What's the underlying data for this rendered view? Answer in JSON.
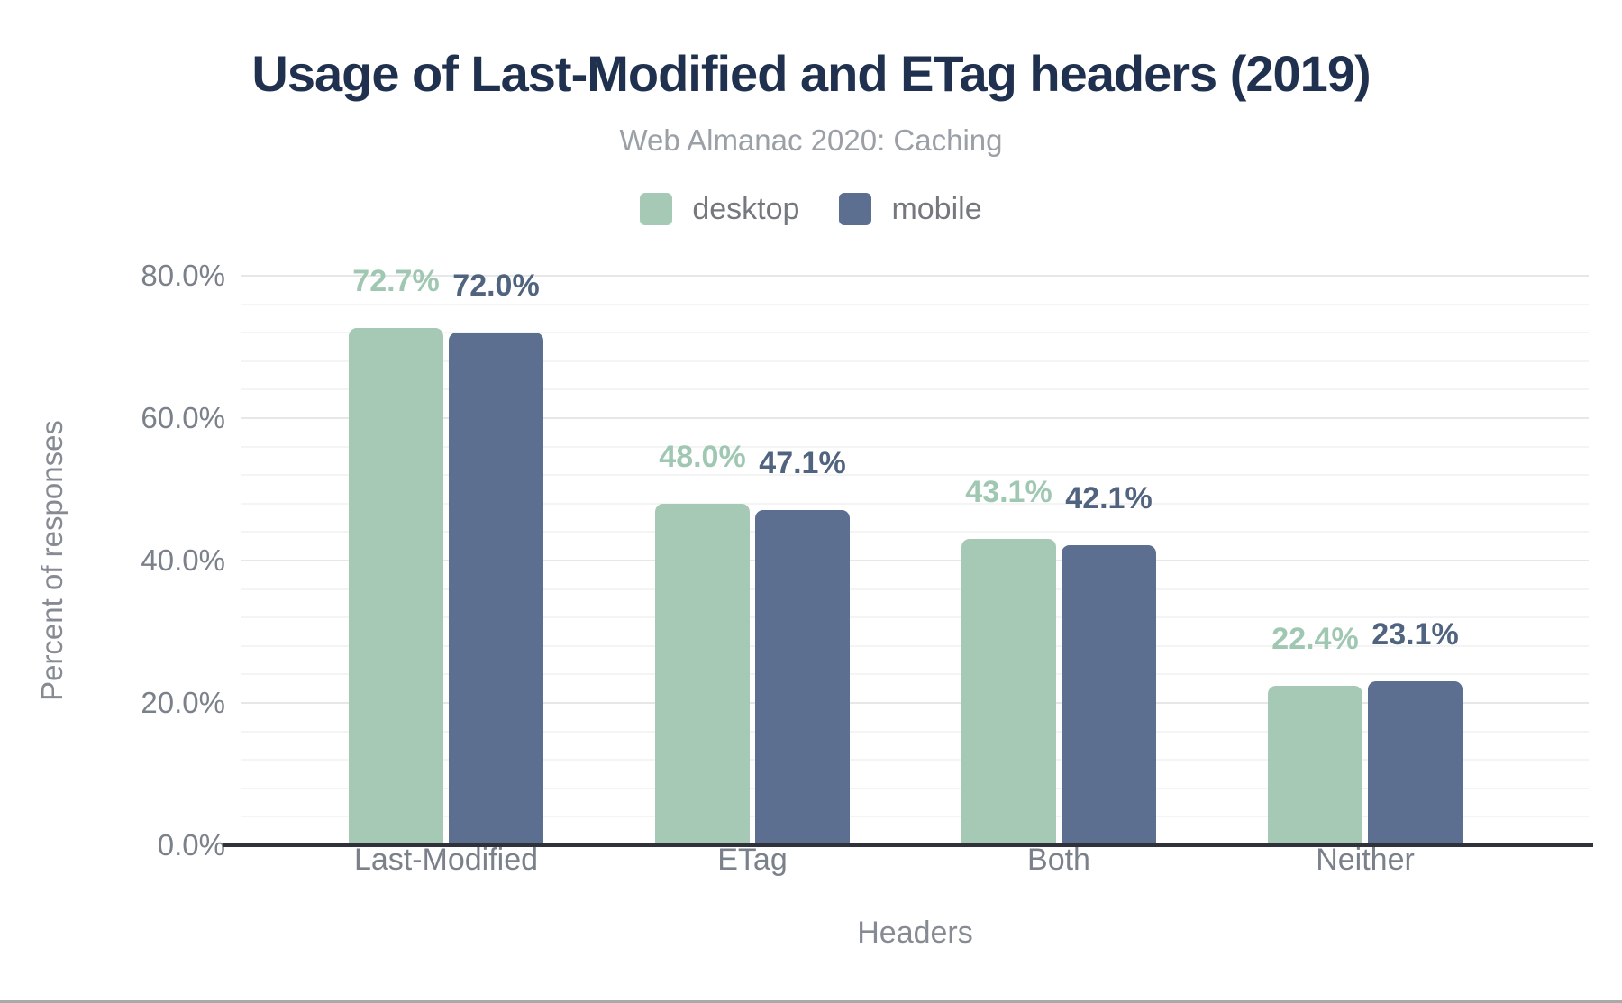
{
  "page": {
    "title": "Usage of Last-Modified and ETag headers (2019)",
    "subtitle": "Web Almanac 2020: Caching"
  },
  "chart_data": {
    "type": "bar",
    "title": "Usage of Last-Modified and ETag headers (2019)",
    "subtitle": "Web Almanac 2020: Caching",
    "categories": [
      "Last-Modified",
      "ETag",
      "Both",
      "Neither"
    ],
    "series": [
      {
        "name": "desktop",
        "color": "#a5c9b5",
        "label_color": "#9fc7b2",
        "values": [
          72.7,
          48.0,
          43.1,
          22.4
        ],
        "labels": [
          "72.7%",
          "48.0%",
          "43.1%",
          "22.4%"
        ]
      },
      {
        "name": "mobile",
        "color": "#5c6f90",
        "label_color": "#50637f",
        "values": [
          72.0,
          47.1,
          42.1,
          23.1
        ],
        "labels": [
          "72.0%",
          "47.1%",
          "42.1%",
          "23.1%"
        ]
      }
    ],
    "xlabel": "Headers",
    "ylabel": "Percent of responses",
    "ylim": [
      0,
      80
    ],
    "yticks": [
      0,
      20,
      40,
      60,
      80
    ],
    "ytick_labels": [
      "0.0%",
      "20.0%",
      "40.0%",
      "60.0%",
      "80.0%"
    ],
    "minor_grid_step": 4,
    "grid": true,
    "legend_position": "top-center"
  },
  "style": {
    "title_color": "#20314f",
    "subtitle_color": "#9aa0a6",
    "tick_text_color": "#7b818a",
    "axis_title_color": "#868b93",
    "major_grid_color": "#e7e7e7",
    "minor_grid_color": "#f4f4f4",
    "axis_line_color": "#2f323a",
    "bottom_border_color": "#a9a9a9",
    "background_color": "#ffffff"
  }
}
